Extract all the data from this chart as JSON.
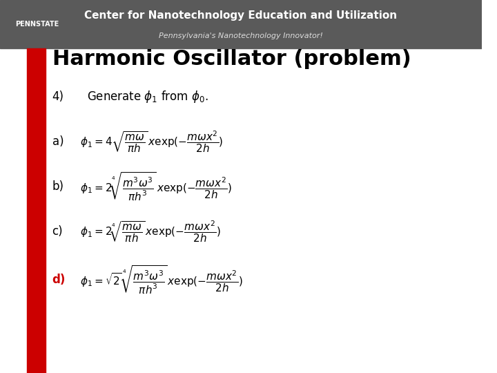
{
  "title": "Harmonic Oscillator (problem)",
  "header_bg": "#5a5a5a",
  "header_text": "Center for Nanotechnology Education and Utilization",
  "pennstate_text": "PENNSTATE",
  "subheader_text": "Pennsylvania's Nanotechnology Innovator!",
  "red_bar_color": "#cc0000",
  "slide_bg": "#ffffff",
  "question_label": "4)",
  "question_text": "Generate $\\phi_1$ from $\\phi_0$.",
  "items": [
    {
      "label": "a)",
      "label_color": "#000000",
      "formula": "$\\phi_1 = 4\\sqrt{\\dfrac{m\\omega}{\\pi h}}\\, x\\exp(-\\dfrac{m\\omega x^2}{2h})$"
    },
    {
      "label": "b)",
      "label_color": "#000000",
      "formula": "$\\phi_1 = 2\\sqrt[4]{\\dfrac{m^3\\omega^3}{\\pi h^3}}\\, x\\exp(-\\dfrac{m\\omega x^2}{2h})$"
    },
    {
      "label": "c)",
      "label_color": "#000000",
      "formula": "$\\phi_1 = 2\\sqrt[4]{\\dfrac{m\\omega}{\\pi h}}\\, x\\exp(-\\dfrac{m\\omega x^2}{2h})$"
    },
    {
      "label": "d)",
      "label_color": "#cc0000",
      "formula": "$\\phi_1 = \\sqrt{2}\\,\\sqrt[4]{\\dfrac{m^3\\omega^3}{\\pi h^3}}\\, x\\exp(-\\dfrac{m\\omega x^2}{2h})$"
    }
  ]
}
